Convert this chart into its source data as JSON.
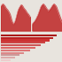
{
  "bg_color": "#e8e4de",
  "top_bg": "#e8e4de",
  "bottom_bg": "#e8e4de",
  "left_chart": {
    "values": [
      5.5,
      5.8,
      6.0,
      6.2,
      6.0,
      5.8,
      5.5,
      5.2,
      5.0,
      4.8,
      4.5,
      4.2,
      3.8,
      3.2,
      2.5,
      2.0,
      1.8,
      1.5,
      1.8,
      2.2,
      2.8,
      3.5,
      4.2,
      4.8,
      5.2,
      5.5,
      5.8,
      6.0,
      5.8,
      5.5,
      5.2,
      5.0,
      4.8,
      4.5,
      4.2,
      4.0,
      3.8,
      3.5,
      3.2,
      3.0
    ],
    "ylim": [
      0,
      7
    ],
    "fill_color": "#c03030",
    "line_color": "#e09090"
  },
  "right_chart": {
    "values": [
      1.5,
      1.8,
      2.0,
      2.2,
      2.5,
      2.8,
      3.2,
      3.5,
      4.0,
      4.5,
      5.0,
      5.5,
      5.8,
      6.0,
      6.2,
      6.0,
      5.8,
      5.5,
      5.2,
      5.0,
      4.8,
      4.5,
      4.8,
      5.0,
      5.2,
      5.5,
      5.8,
      6.0,
      6.2,
      6.0,
      5.8,
      5.5,
      5.0,
      4.5,
      4.0,
      3.5,
      3.0,
      2.5,
      2.0,
      1.8
    ],
    "ylim": [
      0,
      7
    ],
    "fill_color": "#c03030",
    "line_color": "#e09090"
  },
  "bar_chart": {
    "n_bars": 11,
    "values": [
      100,
      93,
      87,
      80,
      72,
      62,
      52,
      42,
      34,
      26,
      18
    ],
    "bar_colors": [
      "#aa1111",
      "#bb2222",
      "#cc3333",
      "#cc4444",
      "#cc5555",
      "#dd6666",
      "#dd7777",
      "#dd8888",
      "#cc9999",
      "#ddaaaa",
      "#eecccc"
    ],
    "xlim": [
      0,
      110
    ]
  }
}
